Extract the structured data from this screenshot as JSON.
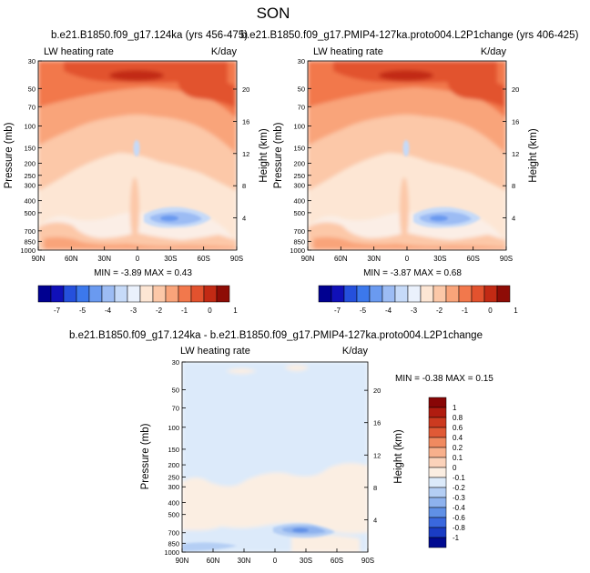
{
  "figure_title": "SON",
  "chart_data": [
    {
      "type": "heatmap",
      "title": "b.e21.B1850.f09_g17.124ka (yrs 456-475)",
      "left_label": "LW heating rate",
      "right_label": "K/day",
      "ylabel": "Pressure (mb)",
      "y2label": "Height (km)",
      "x_ticks": [
        "90N",
        "60N",
        "30N",
        "0",
        "30S",
        "60S",
        "90S"
      ],
      "y_ticks": [
        "30",
        "50",
        "70",
        "100",
        "150",
        "200",
        "250",
        "300",
        "400",
        "500",
        "700",
        "850",
        "1000"
      ],
      "y2_ticks": [
        "20",
        "16",
        "12",
        "8",
        "4"
      ],
      "min": -3.89,
      "max": 0.43,
      "stats_text": "MIN = -3.89   MAX =  0.43",
      "levels": [
        "-7",
        "-5",
        "-4",
        "-3",
        "-2",
        "-1",
        "0",
        "1"
      ]
    },
    {
      "type": "heatmap",
      "title": "b.e21.B1850.f09_g17.PMIP4-127ka.proto004.L2P1change (yrs 406-425)",
      "left_label": "LW heating rate",
      "right_label": "K/day",
      "ylabel": "Pressure (mb)",
      "y2label": "Height (km)",
      "x_ticks": [
        "90N",
        "60N",
        "30N",
        "0",
        "30S",
        "60S",
        "90S"
      ],
      "y_ticks": [
        "30",
        "50",
        "70",
        "100",
        "150",
        "200",
        "250",
        "300",
        "400",
        "500",
        "700",
        "850",
        "1000"
      ],
      "y2_ticks": [
        "20",
        "16",
        "12",
        "8",
        "4"
      ],
      "min": -3.87,
      "max": 0.68,
      "stats_text": "MIN = -3.87   MAX =  0.68",
      "levels": [
        "-7",
        "-5",
        "-4",
        "-3",
        "-2",
        "-1",
        "0",
        "1"
      ]
    },
    {
      "type": "heatmap",
      "title": "b.e21.B1850.f09_g17.124ka - b.e21.B1850.f09_g17.PMIP4-127ka.proto004.L2P1change",
      "left_label": "LW heating rate",
      "right_label": "K/day",
      "ylabel": "Pressure (mb)",
      "y2label": "Height (km)",
      "x_ticks": [
        "90N",
        "60N",
        "30N",
        "0",
        "30S",
        "60S",
        "90S"
      ],
      "y_ticks": [
        "30",
        "50",
        "70",
        "100",
        "150",
        "200",
        "250",
        "300",
        "400",
        "500",
        "700",
        "850",
        "1000"
      ],
      "y2_ticks": [
        "20",
        "16",
        "12",
        "8",
        "4"
      ],
      "min": -0.38,
      "max": 0.15,
      "stats_text": "MIN =  -0.38   MAX =  0.15",
      "levels": [
        "1",
        "0.8",
        "0.6",
        "0.4",
        "0.2",
        "0.1",
        "0",
        "-0.1",
        "-0.2",
        "-0.3",
        "-0.4",
        "-0.6",
        "-0.8",
        "-1"
      ]
    }
  ],
  "colors": {
    "bar_top": [
      "#000090",
      "#1010b8",
      "#2550dc",
      "#3c78ec",
      "#6a9af0",
      "#9cbcf4",
      "#c6daf8",
      "#eaf1fc",
      "#fde6d4",
      "#fcc8a8",
      "#f9a47a",
      "#f2784c",
      "#e2522e",
      "#c22a14",
      "#8e0c06"
    ],
    "bar_bottom": [
      "#880606",
      "#b01c10",
      "#cc3a20",
      "#e05a36",
      "#f08a60",
      "#f8b08c",
      "#fbd2ba",
      "#fbeee2",
      "#dceafa",
      "#b4cef4",
      "#8eb2ee",
      "#6090e6",
      "#3a68de",
      "#1a3cc4",
      "#000a90"
    ]
  }
}
